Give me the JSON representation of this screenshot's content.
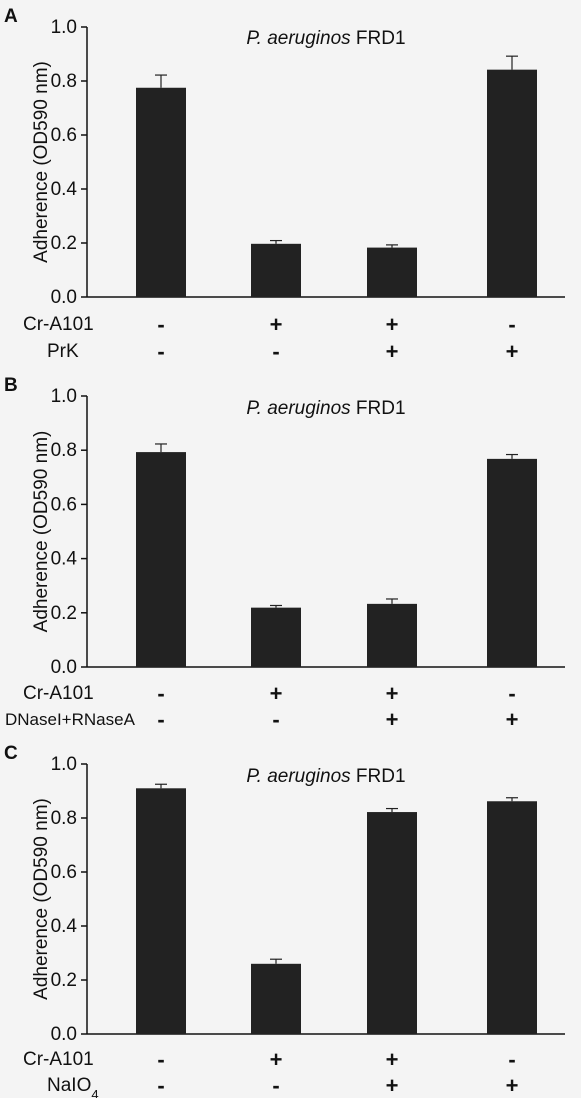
{
  "chart_data": [
    {
      "type": "bar",
      "panel": "A",
      "title_italic": "P. aeruginos",
      "title_rest": "FRD1",
      "ylabel": "Adherence (OD590 nm)",
      "ylim": [
        0,
        1.0
      ],
      "yticks": [
        "0.0",
        "0.2",
        "0.4",
        "0.6",
        "0.8",
        "1.0"
      ],
      "values": [
        0.775,
        0.197,
        0.183,
        0.842
      ],
      "errors": [
        0.047,
        0.012,
        0.01,
        0.05
      ],
      "condition_rows": [
        {
          "label": "Cr-A101",
          "signs": [
            "-",
            "+",
            "+",
            "-"
          ]
        },
        {
          "label": "PrK",
          "signs": [
            "-",
            "-",
            "+",
            "+"
          ]
        }
      ]
    },
    {
      "type": "bar",
      "panel": "B",
      "title_italic": "P. aeruginos",
      "title_rest": "FRD1",
      "ylabel": "Adherence (OD590 nm)",
      "ylim": [
        0,
        1.0
      ],
      "yticks": [
        "0.0",
        "0.2",
        "0.4",
        "0.6",
        "0.8",
        "1.0"
      ],
      "values": [
        0.793,
        0.219,
        0.233,
        0.768
      ],
      "errors": [
        0.03,
        0.008,
        0.018,
        0.016
      ],
      "condition_rows": [
        {
          "label": "Cr-A101",
          "signs": [
            "-",
            "+",
            "+",
            "-"
          ]
        },
        {
          "label": "DNaseI+RNaseA",
          "signs": [
            "-",
            "-",
            "+",
            "+"
          ]
        }
      ]
    },
    {
      "type": "bar",
      "panel": "C",
      "title_italic": "P. aeruginos",
      "title_rest": "FRD1",
      "ylabel": "Adherence (OD590 nm)",
      "ylim": [
        0,
        1.0
      ],
      "yticks": [
        "0.0",
        "0.2",
        "0.4",
        "0.6",
        "0.8",
        "1.0"
      ],
      "values": [
        0.91,
        0.26,
        0.822,
        0.862
      ],
      "errors": [
        0.015,
        0.017,
        0.013,
        0.013
      ],
      "condition_rows": [
        {
          "label": "Cr-A101",
          "signs": [
            "-",
            "+",
            "+",
            "-"
          ]
        },
        {
          "label": "NaIO4",
          "signs": [
            "-",
            "-",
            "+",
            "+"
          ]
        }
      ]
    }
  ]
}
